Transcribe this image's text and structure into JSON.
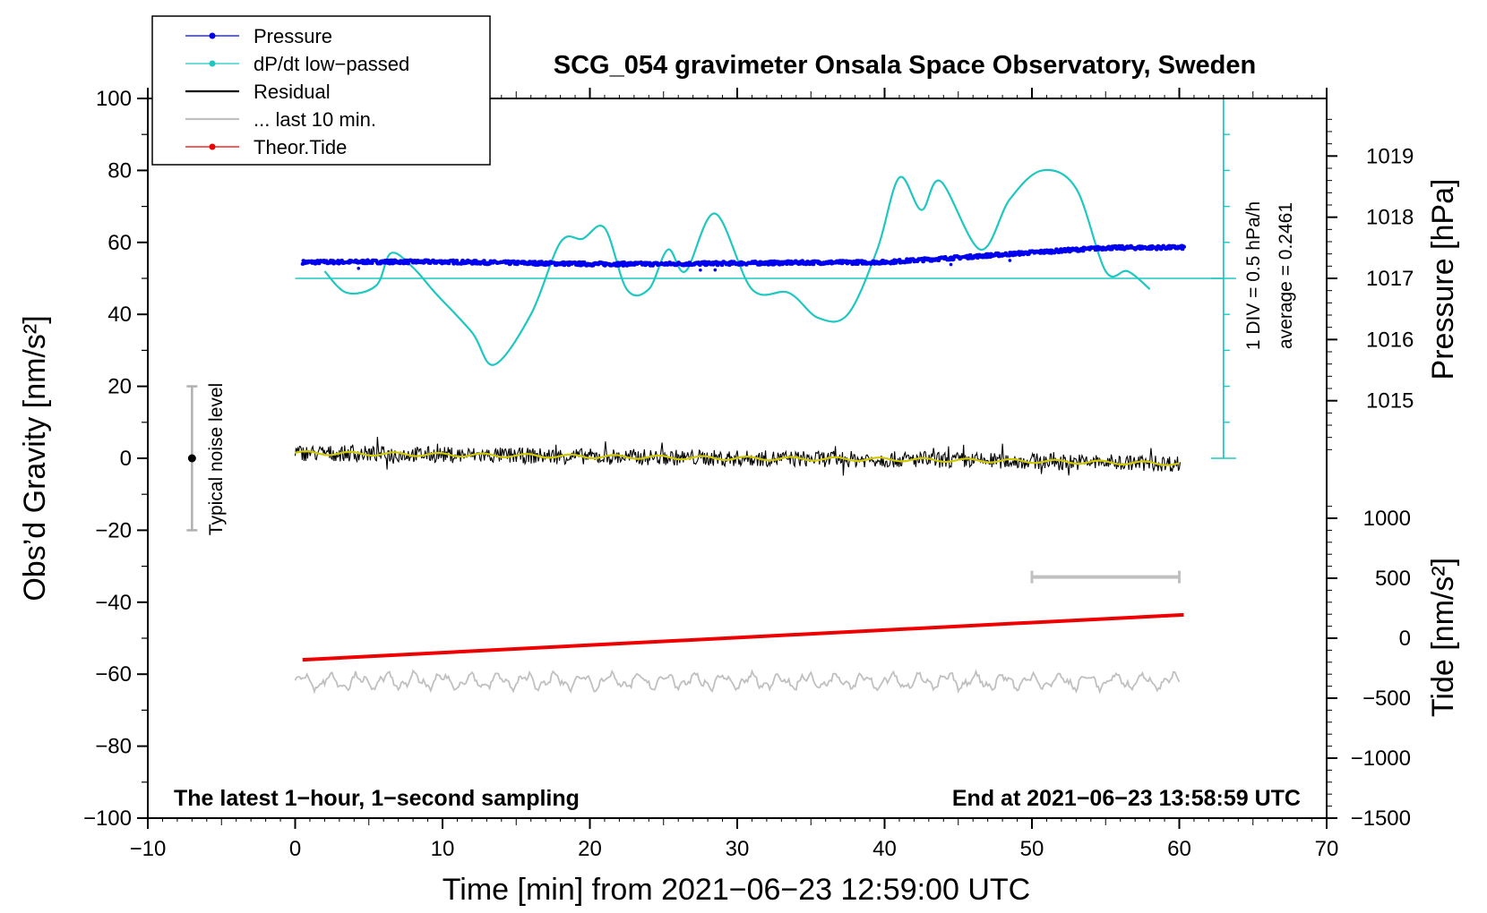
{
  "chart_data": {
    "type": "line",
    "title": "SCG_054 gravimeter Onsala Space Observatory, Sweden",
    "xlabel": "Time [min] from 2021−06−23 12:59:00 UTC",
    "ylabel_left": "Obs’d Gravity [nm/s²]",
    "ylabel_right_pressure": "Pressure [hPa]",
    "ylabel_right_tide": "Tide [nm/s²]",
    "xlim": [
      -10,
      70
    ],
    "ylim": [
      -100,
      100
    ],
    "x_ticks": [
      "−10",
      "0",
      "10",
      "20",
      "30",
      "40",
      "50",
      "60",
      "70"
    ],
    "x_tick_values": [
      -10,
      0,
      10,
      20,
      30,
      40,
      50,
      60,
      70
    ],
    "y_ticks": [
      "100",
      "80",
      "60",
      "40",
      "20",
      "0",
      "−20",
      "−40",
      "−60",
      "−80",
      "−100"
    ],
    "y_tick_values": [
      100,
      80,
      60,
      40,
      20,
      0,
      -20,
      -40,
      -60,
      -80,
      -100
    ],
    "pressure_axis": {
      "ticks": [
        "1019",
        "1018",
        "1017",
        "1016",
        "1015"
      ],
      "tick_values": [
        1019,
        1018,
        1017,
        1016,
        1015
      ],
      "map": {
        "hpa_ref": 1017,
        "gravity_ref": 50,
        "gravity_per_hpa": 17
      }
    },
    "tide_axis": {
      "ticks": [
        "1000",
        "500",
        "0",
        "−500",
        "−1000",
        "−1500"
      ],
      "tick_values": [
        1000,
        500,
        0,
        -500,
        -1000,
        -1500
      ],
      "map": {
        "tide_ref": 0,
        "gravity_ref": -50,
        "gravity_per_unit": 0.03333
      }
    },
    "dpdt_scale": {
      "label_div": "1 DIV = 0.5 hPa/h",
      "label_average": "average = 0.2461",
      "baseline": 50,
      "scale_top": 100,
      "scale_bottom": 0,
      "divisions": 10
    },
    "noise_level": {
      "label": "Typical noise level",
      "x": -7,
      "center": 0,
      "low": -20,
      "high": 20
    },
    "ten_min_bar": {
      "x_start": 50,
      "x_end": 60,
      "y": -33
    },
    "legend": [
      {
        "label": "Pressure",
        "color": "#0000ee",
        "marker": true
      },
      {
        "label": "dP/dt low−passed",
        "color": "#1ec8c0",
        "marker": true
      },
      {
        "label": "Residual",
        "color": "#000000",
        "marker": false
      },
      {
        "label": "... last 10 min.",
        "color": "#c0c0c0",
        "marker": false
      },
      {
        "label": "Theor.Tide",
        "color": "#ee0000",
        "marker": true
      }
    ],
    "notes": {
      "left": "The latest 1−hour, 1−second sampling",
      "right": "End at 2021−06−23 13:58:59 UTC"
    },
    "series": [
      {
        "name": "Pressure",
        "color": "#0000ee",
        "x": [
          0.5,
          5,
          10,
          15,
          20,
          25,
          30,
          35,
          40,
          45,
          50,
          55,
          60.3
        ],
        "values": [
          54.5,
          54.6,
          54.6,
          54.3,
          54,
          54,
          54.2,
          54.4,
          54.5,
          55.8,
          57.2,
          58.5,
          58.6
        ]
      },
      {
        "name": "dP/dt low−passed",
        "color": "#1ec8c0",
        "x": [
          2,
          3.5,
          5.5,
          6.5,
          8,
          9.5,
          12,
          13.5,
          16,
          18,
          19.5,
          21,
          22.5,
          24,
          25.3,
          26.5,
          28.5,
          31,
          33.5,
          35.5,
          37.5,
          39.5,
          41,
          42.5,
          43.8,
          46.5,
          48.5,
          50.7,
          53,
          55,
          56.5,
          58
        ],
        "values": [
          52,
          46,
          48,
          57,
          53,
          46,
          35,
          26,
          40,
          60,
          61,
          64,
          47,
          47,
          58,
          52,
          68,
          47,
          46,
          39,
          40,
          58,
          78,
          69,
          77,
          58,
          72,
          80,
          75,
          52,
          52,
          47
        ]
      },
      {
        "name": "Residual",
        "color": "#000000",
        "noise_amplitude": 4.5,
        "x": [
          0,
          10,
          20,
          30,
          40,
          50,
          60
        ],
        "values": [
          1.5,
          1,
          0.5,
          0,
          -0.3,
          -0.8,
          -1.5
        ]
      },
      {
        "name": "Residual smoothed",
        "color": "#d0c800",
        "x": [
          0,
          10,
          20,
          30,
          40,
          50,
          60
        ],
        "values": [
          1.5,
          1,
          0.5,
          0,
          -0.3,
          -0.8,
          -1.5
        ]
      },
      {
        "name": "... last 10 min.",
        "color": "#c0c0c0",
        "noise_amplitude": 4,
        "x": [
          0,
          60
        ],
        "values": [
          -62,
          -62
        ]
      },
      {
        "name": "Theor.Tide",
        "color": "#ee0000",
        "x": [
          0.5,
          60.3
        ],
        "values": [
          -56,
          -43.5
        ]
      }
    ]
  }
}
